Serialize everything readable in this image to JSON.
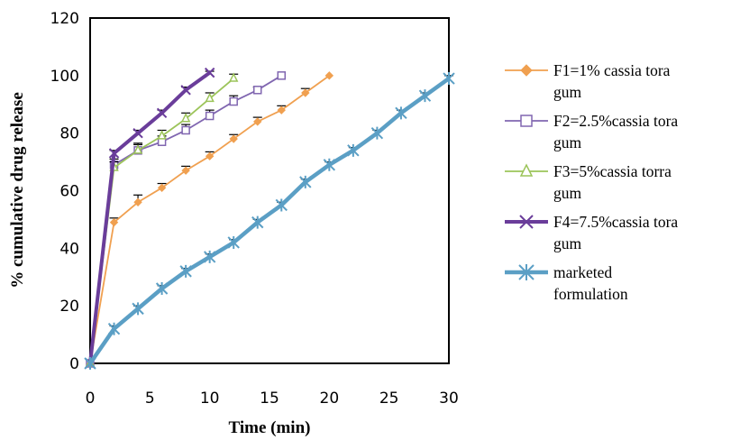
{
  "chart_data": {
    "type": "line",
    "xlabel": "Time (min)",
    "ylabel": "% cumulative drug release",
    "xlim": [
      0,
      30
    ],
    "ylim": [
      0,
      120
    ],
    "xticks": [
      0,
      5,
      10,
      15,
      20,
      25,
      30
    ],
    "yticks": [
      0,
      20,
      40,
      60,
      80,
      100,
      120
    ],
    "grid": false,
    "legend_position": "right",
    "series": [
      {
        "name_lines": [
          "F1=1% cassia tora",
          "gum"
        ],
        "color": "#f0a050",
        "marker": "diamond",
        "x": [
          0,
          2,
          4,
          6,
          8,
          10,
          12,
          14,
          16,
          18,
          20
        ],
        "y": [
          0,
          49,
          56,
          61,
          67,
          72,
          78,
          84,
          88,
          94,
          100
        ],
        "err": [
          0,
          1.5,
          2.5,
          1.5,
          1.5,
          1.5,
          1.5,
          1.5,
          1.5,
          1.5,
          0
        ]
      },
      {
        "name_lines": [
          "F2=2.5%cassia tora",
          "gum"
        ],
        "color": "#8066b0",
        "marker": "square",
        "x": [
          0,
          2,
          4,
          6,
          8,
          10,
          12,
          14,
          16
        ],
        "y": [
          0,
          69,
          74,
          77,
          81,
          86,
          91,
          95,
          100
        ],
        "err": [
          0,
          2,
          2.5,
          2,
          2,
          2,
          2,
          1,
          0
        ]
      },
      {
        "name_lines": [
          "F3=5%cassia torra",
          "gum"
        ],
        "color": "#9cc45a",
        "marker": "triangle",
        "x": [
          0,
          2,
          4,
          6,
          8,
          10,
          12
        ],
        "y": [
          0,
          68,
          74,
          79,
          85,
          92,
          99
        ],
        "err": [
          0,
          2,
          2,
          2,
          2,
          2,
          1.5
        ]
      },
      {
        "name_lines": [
          "F4=7.5%cassia tora",
          "gum"
        ],
        "color": "#6a3d9a",
        "marker": "x",
        "x": [
          0,
          2,
          4,
          6,
          8,
          10
        ],
        "y": [
          0,
          73,
          80,
          87,
          95,
          101
        ],
        "err": [
          0,
          1,
          1,
          1,
          1,
          0.5
        ]
      },
      {
        "name_lines": [
          "marketed",
          "formulation"
        ],
        "color": "#5b9fc5",
        "marker": "star",
        "x": [
          0,
          2,
          4,
          6,
          8,
          10,
          12,
          14,
          16,
          18,
          20,
          22,
          24,
          26,
          28,
          30
        ],
        "y": [
          0,
          12,
          19,
          26,
          32,
          37,
          42,
          49,
          55,
          63,
          69,
          74,
          80,
          87,
          93,
          99
        ],
        "err": [
          0,
          1,
          1,
          1,
          1,
          1,
          1,
          1,
          1,
          1,
          1,
          1,
          1,
          1,
          1,
          1
        ]
      }
    ]
  }
}
